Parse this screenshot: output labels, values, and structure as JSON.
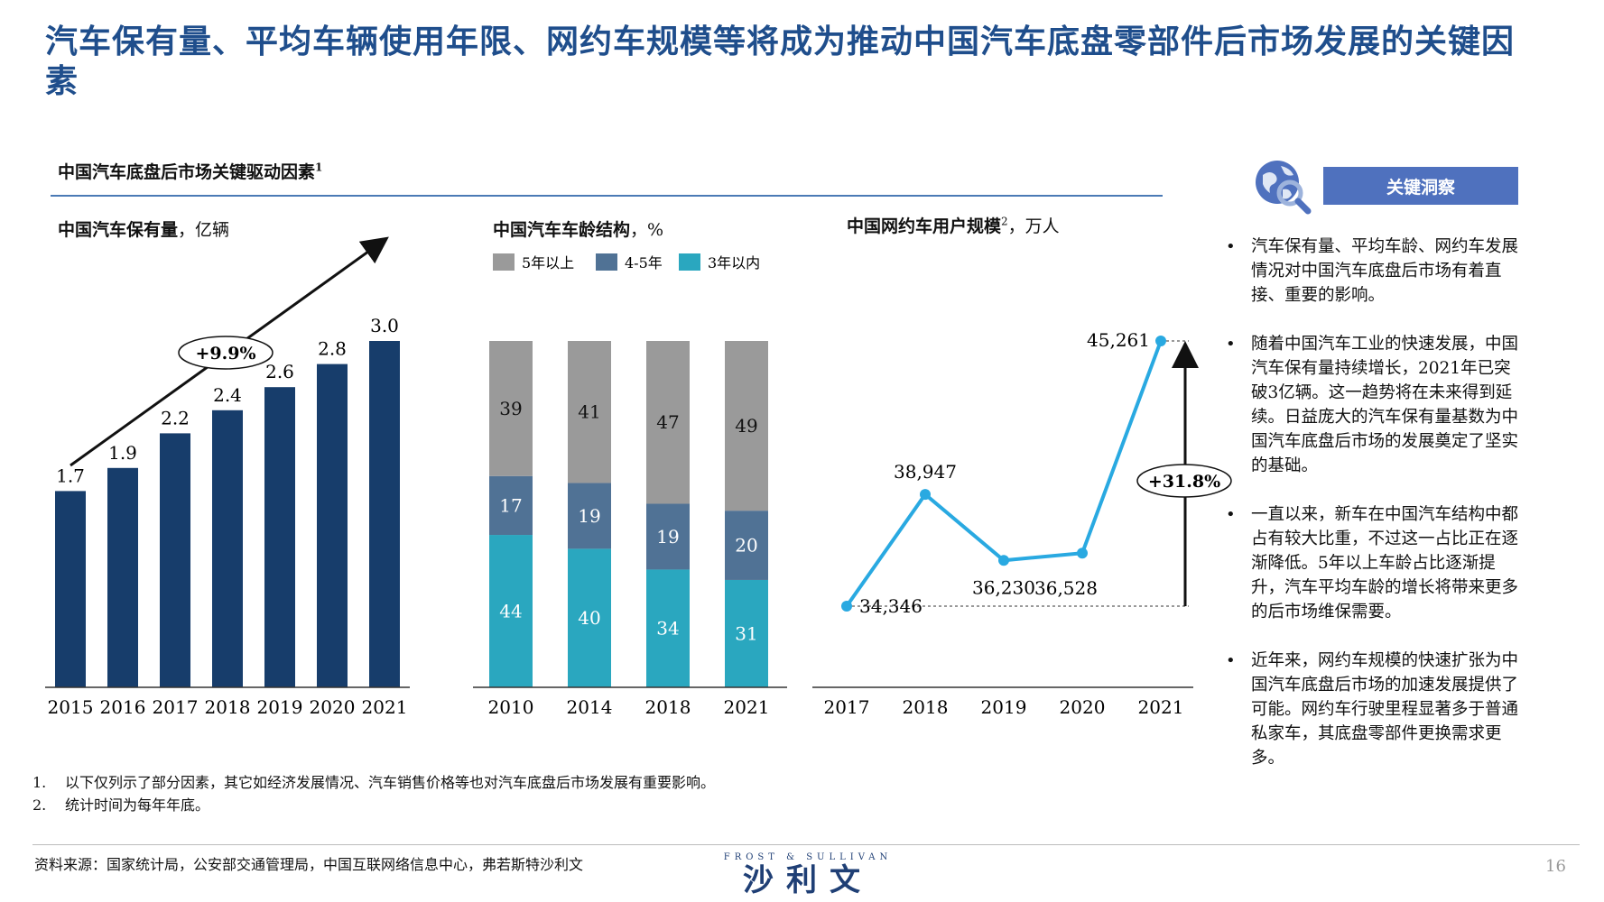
{
  "title": "汽车保有量、平均车辆使用年限、网约车规模等将成为推动中国汽车底盘零部件后市场发展的关键因素",
  "section": {
    "title": "中国汽车底盘后市场关键驱动因素",
    "sup": "1"
  },
  "chart1": {
    "title_bold": "中国汽车保有量",
    "title_rest": "，亿辆",
    "growth": "+9.9%"
  },
  "chart2": {
    "title_bold": "中国汽车车龄结构",
    "title_rest": "，%"
  },
  "chart3": {
    "title_bold": "中国网约车用户规模",
    "title_sup": "2",
    "title_rest": "，万人",
    "growth": "+31.8%"
  },
  "chart_data": [
    {
      "type": "bar",
      "title": "中国汽车保有量，亿辆",
      "categories": [
        "2015",
        "2016",
        "2017",
        "2018",
        "2019",
        "2020",
        "2021"
      ],
      "values": [
        1.7,
        1.9,
        2.2,
        2.4,
        2.6,
        2.8,
        3.0
      ],
      "value_labels": [
        "1.7",
        "1.9",
        "2.2",
        "2.4",
        "2.6",
        "2.8",
        "3.0"
      ],
      "ylim": [
        0,
        3.0
      ],
      "color": "#173d6b"
    },
    {
      "type": "bar",
      "stacked": true,
      "title": "中国汽车车龄结构，%",
      "categories": [
        "2010",
        "2014",
        "2018",
        "2021"
      ],
      "series": [
        {
          "name": "3年以内",
          "values": [
            44,
            40,
            34,
            31
          ],
          "color": "#2aa7bf"
        },
        {
          "name": "4-5年",
          "values": [
            17,
            19,
            19,
            20
          ],
          "color": "#507295"
        },
        {
          "name": "5年以上",
          "values": [
            39,
            41,
            47,
            49
          ],
          "color": "#9a9a9a"
        }
      ],
      "legend_order": [
        "5年以上",
        "4-5年",
        "3年以内"
      ],
      "legend_position": "top"
    },
    {
      "type": "line",
      "title": "中国网约车用户规模，万人",
      "categories": [
        "2017",
        "2018",
        "2019",
        "2020",
        "2021"
      ],
      "values": [
        34346,
        38947,
        36230,
        36528,
        45261
      ],
      "value_labels": [
        "34,346",
        "38,947",
        "36,230",
        "36,528",
        "45,261"
      ],
      "color": "#29a9e1"
    }
  ],
  "insights": {
    "title": "关键洞察",
    "bullets": [
      "汽车保有量、平均车龄、网约车发展情况对中国汽车底盘后市场有着直接、重要的影响。",
      "随着中国汽车工业的快速发展，中国汽车保有量持续增长，2021年已突破3亿辆。这一趋势将在未来得到延续。日益庞大的汽车保有量基数为中国汽车底盘后市场的发展奠定了坚实的基础。",
      "一直以来，新车在中国汽车结构中都占有较大比重，不过这一占比正在逐渐降低。5年以上车龄占比逐渐提升，汽车平均车龄的增长将带来更多的后市场维保需要。",
      "近年来，网约车规模的快速扩张为中国汽车底盘后市场的加速发展提供了可能。网约车行驶里程显著多于普通私家车，其底盘零部件更换需求更多。"
    ]
  },
  "notes": [
    {
      "n": "1.",
      "text": "以下仅列示了部分因素，其它如经济发展情况、汽车销售价格等也对汽车底盘后市场发展有重要影响。"
    },
    {
      "n": "2.",
      "text": "统计时间为每年年底。"
    }
  ],
  "footer": {
    "source": "资料来源：国家统计局，公安部交通管理局，中国互联网络信息中心，弗若斯特沙利文",
    "logo_en": "FROST & SULLIVAN",
    "logo_cn": "沙利文",
    "page": "16"
  }
}
